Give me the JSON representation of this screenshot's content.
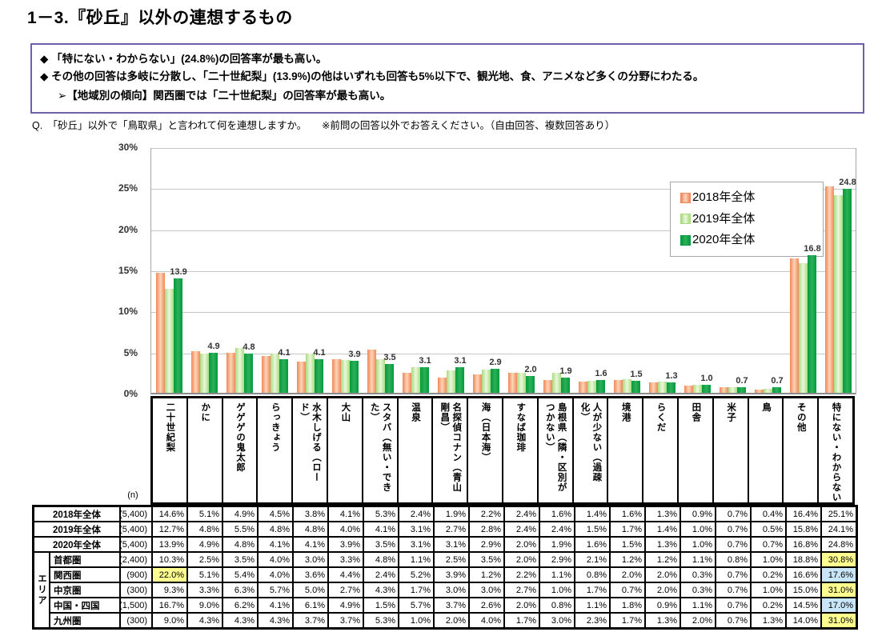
{
  "page": {
    "title": "1－3.『砂丘』以外の連想するもの"
  },
  "callout": {
    "bullets": [
      "◆ 「特にない・わからない」(24.8%)の回答率が最も高い。",
      "◆ その他の回答は多岐に分散し、「二十世紀梨」(13.9%)の他はいずれも回答も5%以下で、観光地、食、アニメなど多くの分野にわたる。"
    ],
    "sub_bullet": "➢【地域別の傾向】関西圏では「二十世紀梨」の回答率が最も高い。"
  },
  "question": "Q.　「砂丘」以外で「鳥取県」と言われて何を連想しますか。　　※前問の回答以外でお答えください。（自由回答、複数回答あり）",
  "chart_data": {
    "type": "bar",
    "title": "",
    "xlabel": "",
    "ylabel": "",
    "ylim": [
      0,
      30
    ],
    "yticks": [
      "0%",
      "5%",
      "10%",
      "15%",
      "20%",
      "25%",
      "30%"
    ],
    "grid": true,
    "legend_position": "upper-right-inside",
    "categories": [
      "二十世紀梨",
      "かに",
      "ゲゲゲの鬼太郎",
      "らっきょう",
      "水木しげる（ロー\nド）",
      "大山",
      "スタバ（無い・でき\nた）",
      "温泉",
      "名探偵コナン（青山\n剛昌）",
      "海（日本海）",
      "すなば珈琲",
      "島根県（隣・区別が\nつかない）",
      "人が少ない（過疎\n化）",
      "境港",
      "らくだ",
      "田舎",
      "米子",
      "鳥",
      "その他",
      "特にない・わからない"
    ],
    "series": [
      {
        "name": "2018年全体",
        "edge": "#F0875A",
        "mid": "#FCD5B5",
        "values": [
          14.6,
          5.1,
          4.9,
          4.5,
          3.8,
          4.1,
          5.3,
          2.4,
          1.9,
          2.2,
          2.4,
          1.6,
          1.4,
          1.6,
          1.3,
          0.9,
          0.7,
          0.4,
          16.4,
          25.1
        ]
      },
      {
        "name": "2019年全体",
        "edge": "#A9DB7E",
        "mid": "#EAF7DC",
        "values": [
          12.7,
          4.8,
          5.5,
          4.8,
          4.8,
          4.0,
          4.1,
          3.1,
          2.7,
          2.8,
          2.4,
          2.4,
          1.5,
          1.7,
          1.4,
          1.0,
          0.7,
          0.5,
          15.8,
          24.1
        ]
      },
      {
        "name": "2020年全体",
        "edge": "#009B3C",
        "mid": "#2FAF59",
        "values": [
          13.9,
          4.9,
          4.8,
          4.1,
          4.1,
          3.9,
          3.5,
          3.1,
          3.1,
          2.9,
          2.0,
          1.9,
          1.6,
          1.5,
          1.3,
          1.0,
          0.7,
          0.7,
          16.8,
          24.8
        ]
      }
    ],
    "value_labels_series": "2020年全体",
    "value_labels": [
      13.9,
      4.9,
      4.8,
      4.1,
      4.1,
      3.9,
      3.5,
      3.1,
      3.1,
      2.9,
      2.0,
      1.9,
      1.6,
      1.5,
      1.3,
      1.0,
      0.7,
      0.7,
      16.8,
      24.8
    ]
  },
  "table": {
    "n_header": "(n)",
    "area_label": "エリア",
    "rows": [
      {
        "label": "2018年全体",
        "n": "(5,400)",
        "scope": "year",
        "values": [
          14.6,
          5.1,
          4.9,
          4.5,
          3.8,
          4.1,
          5.3,
          2.4,
          1.9,
          2.2,
          2.4,
          1.6,
          1.4,
          1.6,
          1.3,
          0.9,
          0.7,
          0.4,
          16.4,
          25.1
        ],
        "highlights": {}
      },
      {
        "label": "2019年全体",
        "n": "(5,400)",
        "scope": "year",
        "values": [
          12.7,
          4.8,
          5.5,
          4.8,
          4.8,
          4.0,
          4.1,
          3.1,
          2.7,
          2.8,
          2.4,
          2.4,
          1.5,
          1.7,
          1.4,
          1.0,
          0.7,
          0.5,
          15.8,
          24.1
        ],
        "highlights": {}
      },
      {
        "label": "2020年全体",
        "n": "(5,400)",
        "scope": "year",
        "values": [
          13.9,
          4.9,
          4.8,
          4.1,
          4.1,
          3.9,
          3.5,
          3.1,
          3.1,
          2.9,
          2.0,
          1.9,
          1.6,
          1.5,
          1.3,
          1.0,
          0.7,
          0.7,
          16.8,
          24.8
        ],
        "highlights": {}
      },
      {
        "label": "首都圏",
        "n": "(2,400)",
        "scope": "area",
        "values": [
          10.3,
          2.5,
          3.5,
          4.0,
          3.0,
          3.3,
          4.8,
          1.1,
          2.5,
          3.5,
          2.0,
          2.9,
          2.1,
          1.2,
          1.2,
          1.1,
          0.8,
          1.0,
          18.8,
          30.8
        ],
        "highlights": {
          "19": "yellow"
        }
      },
      {
        "label": "関西圏",
        "n": "(900)",
        "scope": "area",
        "values": [
          22.0,
          5.1,
          5.4,
          4.0,
          3.6,
          4.4,
          2.4,
          5.2,
          3.9,
          1.2,
          2.2,
          1.1,
          0.8,
          2.0,
          2.0,
          0.3,
          0.7,
          0.2,
          16.6,
          17.6
        ],
        "highlights": {
          "0": "yellow",
          "19": "blue"
        }
      },
      {
        "label": "中京圏",
        "n": "(300)",
        "scope": "area",
        "values": [
          9.3,
          3.3,
          6.3,
          5.7,
          5.0,
          2.7,
          4.3,
          1.7,
          3.0,
          3.0,
          2.7,
          1.0,
          1.7,
          0.7,
          2.0,
          0.3,
          0.7,
          1.0,
          15.0,
          31.0
        ],
        "highlights": {
          "19": "yellow"
        }
      },
      {
        "label": "中国・四国",
        "n": "(1,500)",
        "scope": "area",
        "values": [
          16.7,
          9.0,
          6.2,
          4.1,
          6.1,
          4.9,
          1.5,
          5.7,
          3.7,
          2.6,
          2.0,
          0.8,
          1.1,
          1.8,
          0.9,
          1.1,
          0.7,
          0.2,
          14.5,
          17.0
        ],
        "highlights": {
          "19": "blue"
        }
      },
      {
        "label": "九州圏",
        "n": "(300)",
        "scope": "area",
        "values": [
          9.0,
          4.3,
          4.3,
          4.3,
          3.7,
          3.7,
          5.3,
          1.0,
          2.0,
          4.0,
          1.7,
          3.0,
          2.3,
          1.7,
          1.3,
          2.0,
          0.7,
          1.3,
          14.0,
          31.0
        ],
        "highlights": {
          "19": "yellow"
        }
      }
    ]
  },
  "colors": {
    "box_border": "#6F5FAD",
    "grid": "#C6C6C6",
    "highlight_yellow": "#FFFF8F",
    "highlight_blue": "#C9E6F8"
  }
}
